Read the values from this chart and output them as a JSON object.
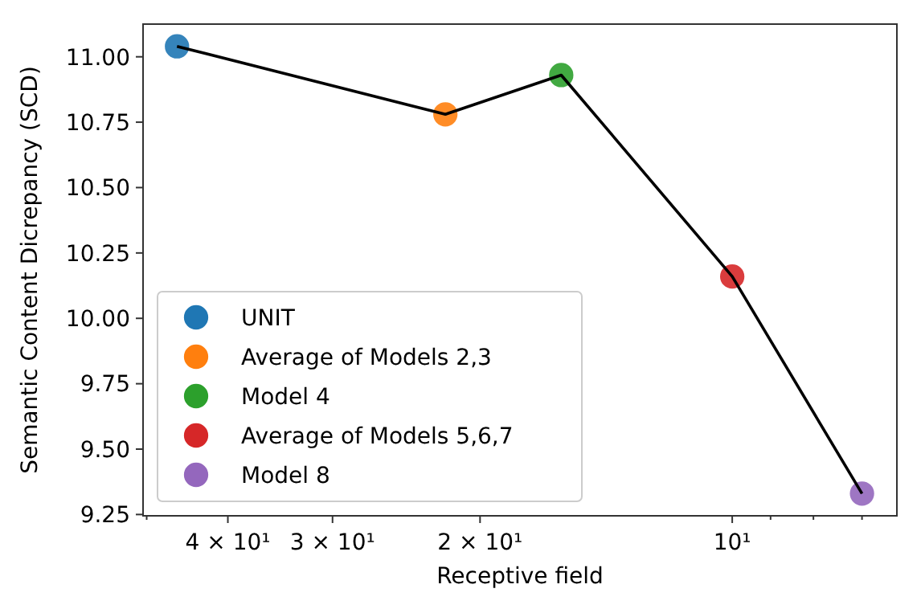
{
  "chart_data": {
    "type": "scatter",
    "xlabel": "Receptive field",
    "ylabel": "Semantic Content Dicrepancy (SCD)",
    "log": "x",
    "xlim": [
      50.5,
      6.36
    ],
    "ylim": [
      9.245,
      11.125
    ],
    "xticks": [
      {
        "value": 50,
        "label": null
      },
      {
        "value": 40,
        "label": "4 × 10¹"
      },
      {
        "value": 30,
        "label": "3 × 10¹"
      },
      {
        "value": 20,
        "label": "2 × 10¹"
      },
      {
        "value": 10,
        "label": "10¹"
      },
      {
        "value": 9,
        "label": null
      },
      {
        "value": 8,
        "label": null
      },
      {
        "value": 7,
        "label": null
      }
    ],
    "yticks": [
      {
        "value": 9.25,
        "label": "9.25"
      },
      {
        "value": 9.5,
        "label": "9.50"
      },
      {
        "value": 9.75,
        "label": "9.75"
      },
      {
        "value": 10,
        "label": "10.00"
      },
      {
        "value": 10.25,
        "label": "10.25"
      },
      {
        "value": 10.5,
        "label": "10.50"
      },
      {
        "value": 10.75,
        "label": "10.75"
      },
      {
        "value": 11,
        "label": "11.00"
      }
    ],
    "grid": false,
    "legend": "bottom left",
    "marker": "circle",
    "series": [
      {
        "name": "UNIT",
        "color": "#1f77b4",
        "x": [
          46
        ],
        "values": [
          11.04
        ]
      },
      {
        "name": "Average of Models 2,3",
        "color": "#ff7f0e",
        "x": [
          22
        ],
        "values": [
          10.78
        ]
      },
      {
        "name": "Model 4",
        "color": "#2ca02c",
        "x": [
          16
        ],
        "values": [
          10.93
        ]
      },
      {
        "name": "Average of Models 5,6,7",
        "color": "#d62728",
        "x": [
          10
        ],
        "values": [
          10.16
        ]
      },
      {
        "name": "Model 8",
        "color": "#9467bd",
        "x": [
          7
        ],
        "values": [
          9.33
        ]
      },
      {
        "type": "line",
        "color": "#000000",
        "marker": "none",
        "line_style": "solid",
        "x": [
          46,
          22,
          16,
          10,
          7
        ],
        "values": [
          11.04,
          10.78,
          10.93,
          10.16,
          9.33
        ]
      }
    ]
  }
}
